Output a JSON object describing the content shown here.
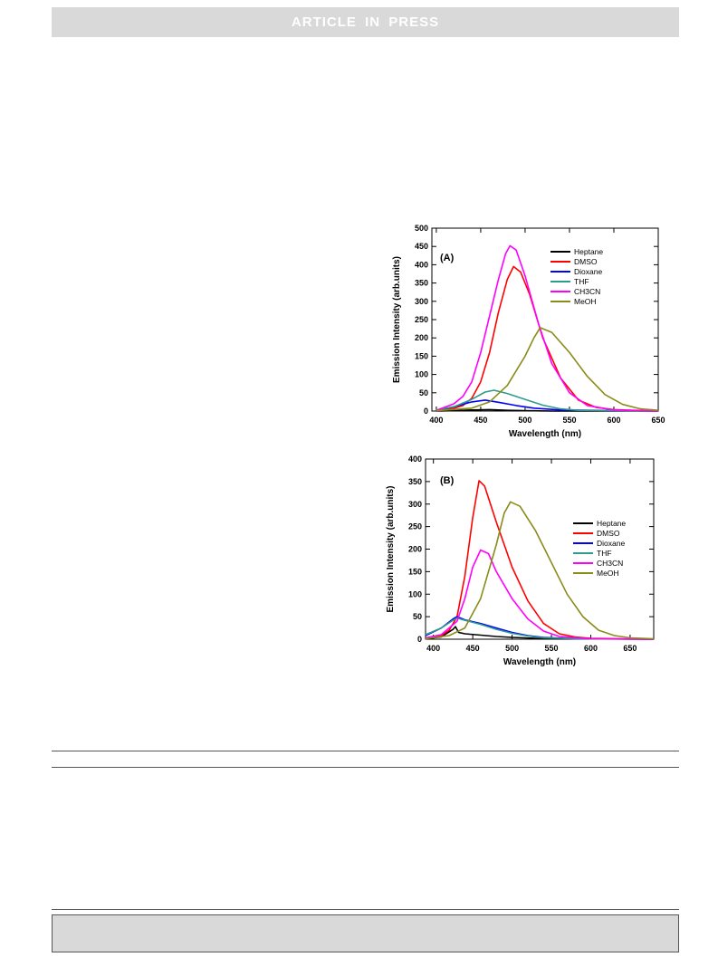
{
  "header": {
    "banner": "ARTICLE IN PRESS"
  },
  "chart_data": [
    {
      "type": "line",
      "panel_label": "(A)",
      "xlabel": "Wavelength (nm)",
      "ylabel": "Emission Intensity (arb.units)",
      "xlim": [
        395,
        650
      ],
      "ylim": [
        0,
        500
      ],
      "xticks": [
        400,
        450,
        500,
        550,
        600,
        650
      ],
      "yticks": [
        0,
        50,
        100,
        150,
        200,
        250,
        300,
        350,
        400,
        450,
        500
      ],
      "grid": false,
      "legend": "upper right",
      "series": [
        {
          "name": "Heptane",
          "color": "#000000",
          "points": [
            [
              400,
              0
            ],
            [
              420,
              1
            ],
            [
              440,
              3
            ],
            [
              460,
              4
            ],
            [
              480,
              2
            ],
            [
              500,
              1
            ],
            [
              530,
              0
            ],
            [
              650,
              0
            ]
          ]
        },
        {
          "name": "DMSO",
          "color": "#ff0000",
          "points": [
            [
              400,
              1
            ],
            [
              420,
              8
            ],
            [
              430,
              15
            ],
            [
              440,
              35
            ],
            [
              450,
              80
            ],
            [
              460,
              160
            ],
            [
              470,
              270
            ],
            [
              480,
              360
            ],
            [
              487,
              395
            ],
            [
              495,
              380
            ],
            [
              505,
              320
            ],
            [
              520,
              200
            ],
            [
              540,
              90
            ],
            [
              560,
              30
            ],
            [
              580,
              10
            ],
            [
              600,
              4
            ],
            [
              650,
              0
            ]
          ]
        },
        {
          "name": "Dioxane",
          "color": "#0000ff",
          "points": [
            [
              400,
              2
            ],
            [
              420,
              12
            ],
            [
              440,
              25
            ],
            [
              455,
              30
            ],
            [
              470,
              24
            ],
            [
              490,
              15
            ],
            [
              510,
              8
            ],
            [
              540,
              3
            ],
            [
              650,
              0
            ]
          ]
        },
        {
          "name": "THF",
          "color": "#2e9b8c",
          "points": [
            [
              400,
              3
            ],
            [
              420,
              12
            ],
            [
              440,
              32
            ],
            [
              455,
              52
            ],
            [
              465,
              57
            ],
            [
              480,
              48
            ],
            [
              500,
              32
            ],
            [
              520,
              16
            ],
            [
              540,
              6
            ],
            [
              560,
              2
            ],
            [
              650,
              0
            ]
          ]
        },
        {
          "name": "CH3CN",
          "color": "#ff00ff",
          "points": [
            [
              400,
              2
            ],
            [
              420,
              20
            ],
            [
              430,
              40
            ],
            [
              440,
              80
            ],
            [
              450,
              160
            ],
            [
              460,
              260
            ],
            [
              470,
              360
            ],
            [
              478,
              430
            ],
            [
              483,
              452
            ],
            [
              490,
              440
            ],
            [
              500,
              370
            ],
            [
              515,
              240
            ],
            [
              530,
              130
            ],
            [
              550,
              50
            ],
            [
              570,
              15
            ],
            [
              600,
              3
            ],
            [
              650,
              0
            ]
          ]
        },
        {
          "name": "MeOH",
          "color": "#8b8b1a",
          "points": [
            [
              400,
              1
            ],
            [
              440,
              8
            ],
            [
              460,
              25
            ],
            [
              480,
              70
            ],
            [
              500,
              150
            ],
            [
              510,
              200
            ],
            [
              517,
              228
            ],
            [
              530,
              215
            ],
            [
              550,
              160
            ],
            [
              570,
              95
            ],
            [
              590,
              45
            ],
            [
              610,
              18
            ],
            [
              630,
              6
            ],
            [
              650,
              2
            ]
          ]
        }
      ]
    },
    {
      "type": "line",
      "panel_label": "(B)",
      "xlabel": "Wavelength (nm)",
      "ylabel": "Emission Intensity (arb.units)",
      "xlim": [
        390,
        680
      ],
      "ylim": [
        0,
        400
      ],
      "xticks": [
        400,
        450,
        500,
        550,
        600,
        650
      ],
      "yticks": [
        0,
        50,
        100,
        150,
        200,
        250,
        300,
        350,
        400
      ],
      "grid": false,
      "legend": "right",
      "series": [
        {
          "name": "Heptane",
          "color": "#000000",
          "points": [
            [
              390,
              1
            ],
            [
              410,
              5
            ],
            [
              425,
              22
            ],
            [
              428,
              28
            ],
            [
              432,
              15
            ],
            [
              440,
              12
            ],
            [
              460,
              9
            ],
            [
              480,
              6
            ],
            [
              500,
              4
            ],
            [
              530,
              2
            ],
            [
              570,
              1
            ],
            [
              680,
              0
            ]
          ]
        },
        {
          "name": "DMSO",
          "color": "#ff0000",
          "points": [
            [
              390,
              1
            ],
            [
              410,
              8
            ],
            [
              420,
              20
            ],
            [
              430,
              50
            ],
            [
              440,
              140
            ],
            [
              450,
              270
            ],
            [
              458,
              352
            ],
            [
              465,
              340
            ],
            [
              480,
              260
            ],
            [
              500,
              160
            ],
            [
              520,
              85
            ],
            [
              540,
              35
            ],
            [
              560,
              12
            ],
            [
              580,
              5
            ],
            [
              600,
              2
            ],
            [
              680,
              0
            ]
          ]
        },
        {
          "name": "Dioxane",
          "color": "#0000ff",
          "points": [
            [
              390,
              8
            ],
            [
              410,
              25
            ],
            [
              425,
              45
            ],
            [
              430,
              50
            ],
            [
              440,
              43
            ],
            [
              460,
              35
            ],
            [
              480,
              25
            ],
            [
              500,
              15
            ],
            [
              520,
              8
            ],
            [
              540,
              4
            ],
            [
              580,
              1
            ],
            [
              680,
              0
            ]
          ]
        },
        {
          "name": "THF",
          "color": "#2e9b8c",
          "points": [
            [
              390,
              10
            ],
            [
              410,
              25
            ],
            [
              425,
              42
            ],
            [
              430,
              47
            ],
            [
              440,
              42
            ],
            [
              460,
              33
            ],
            [
              480,
              22
            ],
            [
              500,
              13
            ],
            [
              520,
              7
            ],
            [
              540,
              3
            ],
            [
              580,
              1
            ],
            [
              680,
              0
            ]
          ]
        },
        {
          "name": "CH3CN",
          "color": "#ff00ff",
          "points": [
            [
              390,
              3
            ],
            [
              410,
              10
            ],
            [
              430,
              40
            ],
            [
              440,
              90
            ],
            [
              450,
              160
            ],
            [
              460,
              198
            ],
            [
              470,
              190
            ],
            [
              480,
              150
            ],
            [
              500,
              90
            ],
            [
              520,
              45
            ],
            [
              540,
              18
            ],
            [
              560,
              6
            ],
            [
              600,
              1
            ],
            [
              680,
              0
            ]
          ]
        },
        {
          "name": "MeOH",
          "color": "#8b8b1a",
          "points": [
            [
              390,
              1
            ],
            [
              420,
              8
            ],
            [
              440,
              25
            ],
            [
              460,
              90
            ],
            [
              480,
              210
            ],
            [
              490,
              280
            ],
            [
              498,
              305
            ],
            [
              510,
              295
            ],
            [
              530,
              240
            ],
            [
              550,
              170
            ],
            [
              570,
              100
            ],
            [
              590,
              50
            ],
            [
              610,
              20
            ],
            [
              630,
              8
            ],
            [
              650,
              3
            ],
            [
              680,
              1
            ]
          ]
        }
      ]
    }
  ]
}
